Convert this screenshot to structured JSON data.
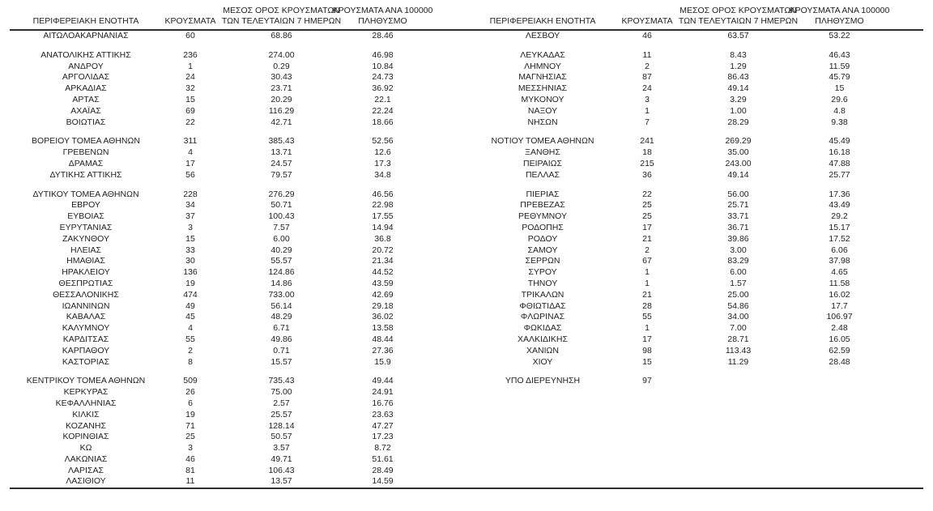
{
  "style": {
    "rule_color": "#2e2e2e",
    "text_color": "#1f1f1f",
    "background_color": "#ffffff"
  },
  "table": {
    "headers": [
      {
        "lines": [
          "ΠΕΡΙΦΕΡΕΙΑΚΗ ΕΝΟΤΗΤΑ"
        ]
      },
      {
        "lines": [
          "ΚΡΟΥΣΜΑΤΑ"
        ]
      },
      {
        "lines": [
          "ΜΕΣΟΣ ΟΡΟΣ ΚΡΟΥΣΜΑΤΩΝ",
          "ΤΩΝ ΤΕΛΕΥΤΑΙΩΝ 7 ΗΜΕΡΩΝ"
        ]
      },
      {
        "lines": [
          "ΚΡΟΥΣΜΑΤΑ ΑΝΑ 100000",
          "ΠΛΗΘΥΣΜΟ"
        ]
      }
    ],
    "left_groups": [
      [
        [
          "ΑΙΤΩΛΟΑΚΑΡΝΑΝΙΑΣ",
          "60",
          "68.86",
          "28.46"
        ]
      ],
      [
        [
          "ΑΝΑΤΟΛΙΚΗΣ ΑΤΤΙΚΗΣ",
          "236",
          "274.00",
          "46.98"
        ],
        [
          "ΑΝΔΡΟΥ",
          "1",
          "0.29",
          "10.84"
        ],
        [
          "ΑΡΓΟΛΙΔΑΣ",
          "24",
          "30.43",
          "24.73"
        ],
        [
          "ΑΡΚΑΔΙΑΣ",
          "32",
          "23.71",
          "36.92"
        ],
        [
          "ΑΡΤΑΣ",
          "15",
          "20.29",
          "22.1"
        ],
        [
          "ΑΧΑΪΑΣ",
          "69",
          "116.29",
          "22.24"
        ],
        [
          "ΒΟΙΩΤΙΑΣ",
          "22",
          "42.71",
          "18.66"
        ]
      ],
      [
        [
          "ΒΟΡΕΙΟΥ ΤΟΜΕΑ ΑΘΗΝΩΝ",
          "311",
          "385.43",
          "52.56"
        ],
        [
          "ΓΡΕΒΕΝΩΝ",
          "4",
          "13.71",
          "12.6"
        ],
        [
          "ΔΡΑΜΑΣ",
          "17",
          "24.57",
          "17.3"
        ],
        [
          "ΔΥΤΙΚΗΣ ΑΤΤΙΚΗΣ",
          "56",
          "79.57",
          "34.8"
        ]
      ],
      [
        [
          "ΔΥΤΙΚΟΥ ΤΟΜΕΑ ΑΘΗΝΩΝ",
          "228",
          "276.29",
          "46.56"
        ],
        [
          "ΕΒΡΟΥ",
          "34",
          "50.71",
          "22.98"
        ],
        [
          "ΕΥΒΟΙΑΣ",
          "37",
          "100.43",
          "17.55"
        ],
        [
          "ΕΥΡΥΤΑΝΙΑΣ",
          "3",
          "7.57",
          "14.94"
        ],
        [
          "ΖΑΚΥΝΘΟΥ",
          "15",
          "6.00",
          "36.8"
        ],
        [
          "ΗΛΕΙΑΣ",
          "33",
          "40.29",
          "20.72"
        ],
        [
          "ΗΜΑΘΙΑΣ",
          "30",
          "55.57",
          "21.34"
        ],
        [
          "ΗΡΑΚΛΕΙΟΥ",
          "136",
          "124.86",
          "44.52"
        ],
        [
          "ΘΕΣΠΡΩΤΙΑΣ",
          "19",
          "14.86",
          "43.59"
        ],
        [
          "ΘΕΣΣΑΛΟΝΙΚΗΣ",
          "474",
          "733.00",
          "42.69"
        ],
        [
          "ΙΩΑΝΝΙΝΩΝ",
          "49",
          "56.14",
          "29.18"
        ],
        [
          "ΚΑΒΑΛΑΣ",
          "45",
          "48.29",
          "36.02"
        ],
        [
          "ΚΑΛΥΜΝΟΥ",
          "4",
          "6.71",
          "13.58"
        ],
        [
          "ΚΑΡΔΙΤΣΑΣ",
          "55",
          "49.86",
          "48.44"
        ],
        [
          "ΚΑΡΠΑΘΟΥ",
          "2",
          "0.71",
          "27.36"
        ],
        [
          "ΚΑΣΤΟΡΙΑΣ",
          "8",
          "15.57",
          "15.9"
        ]
      ],
      [
        [
          "ΚΕΝΤΡΙΚΟΥ ΤΟΜΕΑ ΑΘΗΝΩΝ",
          "509",
          "735.43",
          "49.44"
        ],
        [
          "ΚΕΡΚΥΡΑΣ",
          "26",
          "75.00",
          "24.91"
        ],
        [
          "ΚΕΦΑΛΛΗΝΙΑΣ",
          "6",
          "2.57",
          "16.76"
        ],
        [
          "ΚΙΛΚΙΣ",
          "19",
          "25.57",
          "23.63"
        ],
        [
          "ΚΟΖΑΝΗΣ",
          "71",
          "128.14",
          "47.27"
        ],
        [
          "ΚΟΡΙΝΘΙΑΣ",
          "25",
          "50.57",
          "17.23"
        ],
        [
          "ΚΩ",
          "3",
          "3.57",
          "8.72"
        ],
        [
          "ΛΑΚΩΝΙΑΣ",
          "46",
          "49.71",
          "51.61"
        ],
        [
          "ΛΑΡΙΣΑΣ",
          "81",
          "106.43",
          "28.49"
        ],
        [
          "ΛΑΣΙΘΙΟΥ",
          "11",
          "13.57",
          "14.59"
        ]
      ]
    ],
    "right_groups": [
      [
        [
          "ΛΕΣΒΟΥ",
          "46",
          "63.57",
          "53.22"
        ]
      ],
      [
        [
          "ΛΕΥΚΑΔΑΣ",
          "11",
          "8.43",
          "46.43"
        ],
        [
          "ΛΗΜΝΟΥ",
          "2",
          "1.29",
          "11.59"
        ],
        [
          "ΜΑΓΝΗΣΙΑΣ",
          "87",
          "86.43",
          "45.79"
        ],
        [
          "ΜΕΣΣΗΝΙΑΣ",
          "24",
          "49.14",
          "15"
        ],
        [
          "ΜΥΚΟΝΟΥ",
          "3",
          "3.29",
          "29.6"
        ],
        [
          "ΝΑΞΟΥ",
          "1",
          "1.00",
          "4.8"
        ],
        [
          "ΝΗΣΩΝ",
          "7",
          "28.29",
          "9.38"
        ]
      ],
      [
        [
          "ΝΟΤΙΟΥ ΤΟΜΕΑ ΑΘΗΝΩΝ",
          "241",
          "269.29",
          "45.49"
        ],
        [
          "ΞΑΝΘΗΣ",
          "18",
          "35.00",
          "16.18"
        ],
        [
          "ΠΕΙΡΑΙΩΣ",
          "215",
          "243.00",
          "47.88"
        ],
        [
          "ΠΕΛΛΑΣ",
          "36",
          "49.14",
          "25.77"
        ]
      ],
      [
        [
          "ΠΙΕΡΙΑΣ",
          "22",
          "56.00",
          "17.36"
        ],
        [
          "ΠΡΕΒΕΖΑΣ",
          "25",
          "25.71",
          "43.49"
        ],
        [
          "ΡΕΘΥΜΝΟΥ",
          "25",
          "33.71",
          "29.2"
        ],
        [
          "ΡΟΔΟΠΗΣ",
          "17",
          "36.71",
          "15.17"
        ],
        [
          "ΡΟΔΟΥ",
          "21",
          "39.86",
          "17.52"
        ],
        [
          "ΣΑΜΟΥ",
          "2",
          "3.00",
          "6.06"
        ],
        [
          "ΣΕΡΡΩΝ",
          "67",
          "83.29",
          "37.98"
        ],
        [
          "ΣΥΡΟΥ",
          "1",
          "6.00",
          "4.65"
        ],
        [
          "ΤΗΝΟΥ",
          "1",
          "1.57",
          "11.58"
        ],
        [
          "ΤΡΙΚΑΛΩΝ",
          "21",
          "25.00",
          "16.02"
        ],
        [
          "ΦΘΙΩΤΙΔΑΣ",
          "28",
          "54.86",
          "17.7"
        ],
        [
          "ΦΛΩΡΙΝΑΣ",
          "55",
          "34.00",
          "106.97"
        ],
        [
          "ΦΩΚΙΔΑΣ",
          "1",
          "7.00",
          "2.48"
        ],
        [
          "ΧΑΛΚΙΔΙΚΗΣ",
          "17",
          "28.71",
          "16.05"
        ],
        [
          "ΧΑΝΙΩΝ",
          "98",
          "113.43",
          "62.59"
        ],
        [
          "ΧΙΟΥ",
          "15",
          "11.29",
          "28.48"
        ]
      ],
      [
        [
          "ΥΠΟ ΔΙΕΡΕΥΝΗΣΗ",
          "97",
          "",
          ""
        ]
      ]
    ]
  }
}
